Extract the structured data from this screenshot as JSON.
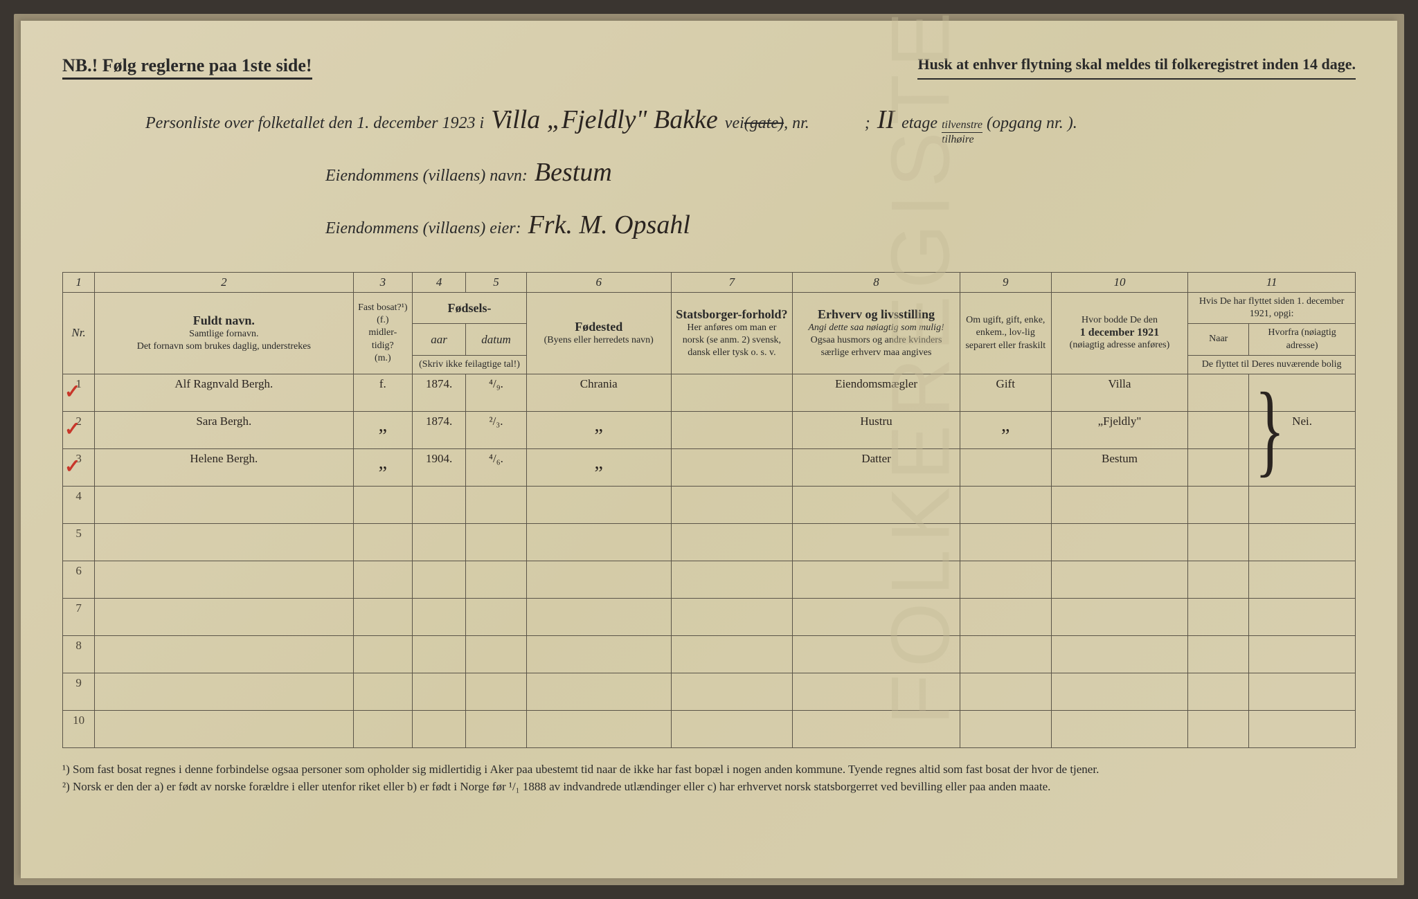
{
  "top": {
    "nb": "NB.! Følg reglerne paa 1ste side!",
    "husk": "Husk at enhver flytning skal meldes til folkeregistret inden 14 dage."
  },
  "header": {
    "line1_a": "Personliste over folketallet den 1. december 1923 i",
    "line1_hand1": "Villa „Fjeldly\" Bakke",
    "line1_b": "vei",
    "line1_struck": "(gate)",
    "line1_c": ", nr.",
    "line1_semicolon": ";",
    "line1_hand2": "II",
    "line1_d": "etage",
    "line1_frac_top": "tilvenstre",
    "line1_frac_bot": "tilhøire",
    "line1_e": "(opgang nr.       ).",
    "line2_a": "Eiendommens (villaens) navn:",
    "line2_hand": "Bestum",
    "line3_a": "Eiendommens (villaens) eier:",
    "line3_hand": "Frk. M. Opsahl"
  },
  "columns": {
    "nums": [
      "1",
      "2",
      "3",
      "4",
      "5",
      "6",
      "7",
      "8",
      "9",
      "10",
      "11"
    ],
    "nr": "Nr.",
    "c2_title": "Fuldt navn.",
    "c2_sub": "Samtlige fornavn.\nDet fornavn som brukes daglig, understrekes",
    "c3_title": "Fast bosat?¹)\n(f.)\nmidler-tidig?\n(m.)",
    "c45_title": "Fødsels-",
    "c4": "aar",
    "c5": "datum",
    "c45_sub": "(Skriv ikke feilagtige tal!)",
    "c6_title": "Fødested",
    "c6_sub": "(Byens eller herredets navn)",
    "c7_title": "Statsborger-forhold?",
    "c7_sub": "Her anføres om man er norsk (se anm. 2) svensk, dansk eller tysk o. s. v.",
    "c8_title": "Erhverv og livsstilling",
    "c8_subit": "Angi dette saa nøiagtig som mulig!",
    "c8_sub": "Ogsaa husmors og andre kvinders særlige erhverv maa angives",
    "c9": "Om ugift, gift, enke, enkem., lov-lig separert eller fraskilt",
    "c10_a": "Hvor bodde De den",
    "c10_b": "1 december 1921",
    "c10_c": "(nøiagtig adresse anføres)",
    "c11_title": "Hvis De har flyttet siden 1. december 1921, opgi:",
    "c11a": "Naar",
    "c11b": "Hvorfra (nøiagtig adresse)",
    "c11_sub": "De flyttet til Deres nuværende bolig"
  },
  "rows": [
    {
      "nr": "1",
      "check": true,
      "name": "Alf Ragnvald Bergh.",
      "fast": "f.",
      "aar": "1874.",
      "datum": "⁴/₉.",
      "fodested": "Chrania",
      "statsb": "",
      "erhverv": "Eiendomsmægler",
      "civil": "Gift",
      "bodde": "Villa",
      "flyt_naar": "",
      "flyt_fra": ""
    },
    {
      "nr": "2",
      "check": true,
      "name": "Sara Bergh.",
      "fast": "„",
      "aar": "1874.",
      "datum": "²/₃.",
      "fodested": "„",
      "statsb": "",
      "erhverv": "Hustru",
      "civil": "„",
      "bodde": "„Fjeldly\"",
      "flyt_naar": "",
      "flyt_fra": "Nei."
    },
    {
      "nr": "3",
      "check": true,
      "name": "Helene Bergh.",
      "fast": "„",
      "aar": "1904.",
      "datum": "⁴/₆.",
      "fodested": "„",
      "statsb": "",
      "erhverv": "Datter",
      "civil": "",
      "bodde": "Bestum",
      "flyt_naar": "",
      "flyt_fra": ""
    },
    {
      "nr": "4"
    },
    {
      "nr": "5"
    },
    {
      "nr": "6"
    },
    {
      "nr": "7"
    },
    {
      "nr": "8"
    },
    {
      "nr": "9"
    },
    {
      "nr": "10"
    }
  ],
  "footnotes": {
    "f1": "¹) Som fast bosat regnes i denne forbindelse ogsaa personer som opholder sig midlertidig i Aker paa ubestemt tid naar de ikke har fast bopæl i nogen anden kommune. Tyende regnes altid som fast bosat der hvor de tjener.",
    "f2": "²) Norsk er den der a) er født av norske forældre i eller utenfor riket eller b) er født i Norge før ¹/₁ 1888 av indvandrede utlændinger eller c) har erhvervet norsk statsborgerret ved bevilling eller paa anden maate."
  },
  "watermark": "FOLKEREGISTER",
  "style": {
    "page_bg": "#d8cfb0",
    "line_color": "#5a5448",
    "hand_color": "#2a2420",
    "check_color": "#c8362a"
  }
}
